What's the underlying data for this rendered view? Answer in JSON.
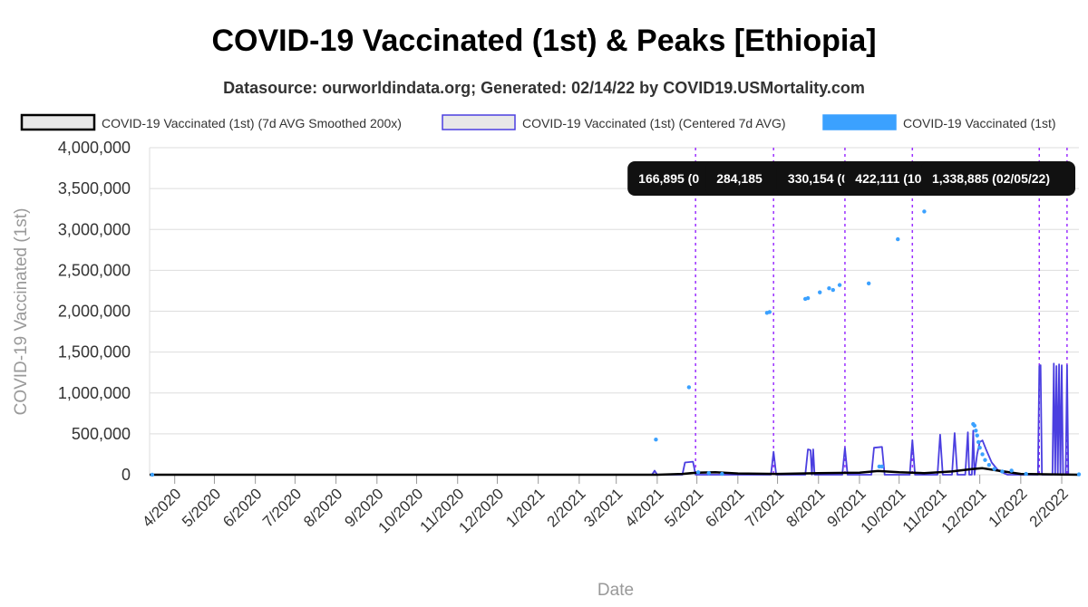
{
  "chart_data": {
    "type": "line",
    "title": "COVID-19 Vaccinated (1st) & Peaks [Ethiopia]",
    "subtitle": "Datasource: ourworldindata.org; Generated: 02/14/22 by COVID19.USMortality.com",
    "xlabel": "Date",
    "ylabel": "COVID-19 Vaccinated (1st)",
    "ylim": [
      0,
      4000000
    ],
    "yticks": [
      "0",
      "500,000",
      "1,000,000",
      "1,500,000",
      "2,000,000",
      "2,500,000",
      "3,000,000",
      "3,500,000",
      "4,000,000"
    ],
    "ytick_values": [
      0,
      500000,
      1000000,
      1500000,
      2000000,
      2500000,
      3000000,
      3500000,
      4000000
    ],
    "x_domain": [
      "2020-03-13",
      "2022-02-14"
    ],
    "xticks": [
      {
        "label": "4/2020",
        "date": "2020-04-01"
      },
      {
        "label": "5/2020",
        "date": "2020-05-01"
      },
      {
        "label": "6/2020",
        "date": "2020-06-01"
      },
      {
        "label": "7/2020",
        "date": "2020-07-01"
      },
      {
        "label": "8/2020",
        "date": "2020-08-01"
      },
      {
        "label": "9/2020",
        "date": "2020-09-01"
      },
      {
        "label": "10/2020",
        "date": "2020-10-01"
      },
      {
        "label": "11/2020",
        "date": "2020-11-01"
      },
      {
        "label": "12/2020",
        "date": "2020-12-01"
      },
      {
        "label": "1/2021",
        "date": "2021-01-01"
      },
      {
        "label": "2/2021",
        "date": "2021-02-01"
      },
      {
        "label": "3/2021",
        "date": "2021-03-01"
      },
      {
        "label": "4/2021",
        "date": "2021-04-01"
      },
      {
        "label": "5/2021",
        "date": "2021-05-01"
      },
      {
        "label": "6/2021",
        "date": "2021-06-01"
      },
      {
        "label": "7/2021",
        "date": "2021-07-01"
      },
      {
        "label": "8/2021",
        "date": "2021-08-01"
      },
      {
        "label": "9/2021",
        "date": "2021-09-01"
      },
      {
        "label": "10/2021",
        "date": "2021-10-01"
      },
      {
        "label": "11/2021",
        "date": "2021-11-01"
      },
      {
        "label": "12/2021",
        "date": "2021-12-01"
      },
      {
        "label": "1/2022",
        "date": "2022-01-01"
      },
      {
        "label": "2/2022",
        "date": "2022-02-01"
      }
    ],
    "legend": {
      "placement": "top",
      "items": [
        {
          "label": "COVID-19 Vaccinated (1st) (7d AVG Smoothed 200x)",
          "fill": "#e8e8e8",
          "stroke": "#000000"
        },
        {
          "label": "COVID-19 Vaccinated (1st) (Centered 7d AVG)",
          "fill": "#e8e8e8",
          "stroke": "#4b3fe0"
        },
        {
          "label": "COVID-19 Vaccinated (1st)",
          "fill": "#3ba1ff",
          "stroke": "#3ba1ff"
        }
      ]
    },
    "series": [
      {
        "name": "COVID-19 Vaccinated (1st)",
        "kind": "scatter",
        "color": "#3ba1ff",
        "points": [
          [
            "2020-03-15",
            0
          ],
          [
            "2021-03-31",
            430000
          ],
          [
            "2021-04-25",
            1070000
          ],
          [
            "2021-05-02",
            30000
          ],
          [
            "2021-05-10",
            20000
          ],
          [
            "2021-05-20",
            10000
          ],
          [
            "2021-06-23",
            1980000
          ],
          [
            "2021-06-25",
            1990000
          ],
          [
            "2021-07-22",
            2150000
          ],
          [
            "2021-07-24",
            2160000
          ],
          [
            "2021-08-02",
            2230000
          ],
          [
            "2021-08-09",
            2280000
          ],
          [
            "2021-08-12",
            2260000
          ],
          [
            "2021-08-17",
            2320000
          ],
          [
            "2021-09-08",
            2340000
          ],
          [
            "2021-09-16",
            100000
          ],
          [
            "2021-09-18",
            100000
          ],
          [
            "2021-09-30",
            2880000
          ],
          [
            "2021-10-20",
            3220000
          ],
          [
            "2021-11-26",
            620000
          ],
          [
            "2021-11-27",
            600000
          ],
          [
            "2021-11-28",
            540000
          ],
          [
            "2021-11-29",
            480000
          ],
          [
            "2021-11-30",
            400000
          ],
          [
            "2021-12-01",
            330000
          ],
          [
            "2021-12-03",
            250000
          ],
          [
            "2021-12-05",
            180000
          ],
          [
            "2021-12-08",
            120000
          ],
          [
            "2021-12-12",
            70000
          ],
          [
            "2021-12-18",
            40000
          ],
          [
            "2021-12-25",
            50000
          ],
          [
            "2022-01-05",
            10000
          ],
          [
            "2022-02-14",
            5000
          ]
        ]
      },
      {
        "name": "COVID-19 Vaccinated (1st) (Centered 7d AVG)",
        "kind": "line",
        "color": "#4b3fe0",
        "points": [
          [
            "2020-03-13",
            0
          ],
          [
            "2021-03-28",
            0
          ],
          [
            "2021-03-30",
            50000
          ],
          [
            "2021-04-01",
            0
          ],
          [
            "2021-04-20",
            0
          ],
          [
            "2021-04-22",
            150000
          ],
          [
            "2021-04-28",
            160000
          ],
          [
            "2021-04-30",
            0
          ],
          [
            "2021-06-26",
            0
          ],
          [
            "2021-06-28",
            280000
          ],
          [
            "2021-06-30",
            0
          ],
          [
            "2021-07-22",
            0
          ],
          [
            "2021-07-24",
            310000
          ],
          [
            "2021-07-26",
            300000
          ],
          [
            "2021-07-27",
            0
          ],
          [
            "2021-07-28",
            310000
          ],
          [
            "2021-07-29",
            0
          ],
          [
            "2021-08-19",
            0
          ],
          [
            "2021-08-21",
            330000
          ],
          [
            "2021-08-23",
            0
          ],
          [
            "2021-09-10",
            0
          ],
          [
            "2021-09-12",
            330000
          ],
          [
            "2021-09-18",
            340000
          ],
          [
            "2021-09-20",
            0
          ],
          [
            "2021-10-09",
            0
          ],
          [
            "2021-10-11",
            422000
          ],
          [
            "2021-10-13",
            0
          ],
          [
            "2021-10-30",
            0
          ],
          [
            "2021-11-01",
            490000
          ],
          [
            "2021-11-03",
            0
          ],
          [
            "2021-11-10",
            0
          ],
          [
            "2021-11-12",
            510000
          ],
          [
            "2021-11-14",
            0
          ],
          [
            "2021-11-20",
            0
          ],
          [
            "2021-11-22",
            520000
          ],
          [
            "2021-11-23",
            0
          ],
          [
            "2021-11-25",
            0
          ],
          [
            "2021-11-26",
            540000
          ],
          [
            "2021-11-27",
            0
          ],
          [
            "2021-11-29",
            250000
          ],
          [
            "2021-12-01",
            400000
          ],
          [
            "2021-12-03",
            420000
          ],
          [
            "2021-12-06",
            300000
          ],
          [
            "2021-12-10",
            150000
          ],
          [
            "2021-12-15",
            50000
          ],
          [
            "2021-12-22",
            0
          ],
          [
            "2022-01-14",
            0
          ],
          [
            "2022-01-15",
            1330000
          ],
          [
            "2022-01-16",
            1340000
          ],
          [
            "2022-01-17",
            0
          ],
          [
            "2022-01-25",
            0
          ],
          [
            "2022-01-26",
            1360000
          ],
          [
            "2022-01-27",
            0
          ],
          [
            "2022-01-28",
            1330000
          ],
          [
            "2022-01-29",
            0
          ],
          [
            "2022-01-30",
            1350000
          ],
          [
            "2022-01-31",
            0
          ],
          [
            "2022-02-01",
            1340000
          ],
          [
            "2022-02-02",
            0
          ],
          [
            "2022-02-04",
            0
          ],
          [
            "2022-02-05",
            1338885
          ],
          [
            "2022-02-06",
            0
          ],
          [
            "2022-02-14",
            0
          ]
        ]
      },
      {
        "name": "COVID-19 Vaccinated (1st) (7d AVG Smoothed 200x)",
        "kind": "line",
        "color": "#000000",
        "points": [
          [
            "2020-03-13",
            0
          ],
          [
            "2021-04-01",
            0
          ],
          [
            "2021-04-20",
            10000
          ],
          [
            "2021-05-01",
            25000
          ],
          [
            "2021-05-15",
            30000
          ],
          [
            "2021-06-01",
            15000
          ],
          [
            "2021-07-01",
            10000
          ],
          [
            "2021-08-01",
            20000
          ],
          [
            "2021-09-01",
            25000
          ],
          [
            "2021-09-15",
            45000
          ],
          [
            "2021-10-01",
            30000
          ],
          [
            "2021-10-20",
            20000
          ],
          [
            "2021-11-10",
            40000
          ],
          [
            "2021-11-25",
            70000
          ],
          [
            "2021-12-03",
            80000
          ],
          [
            "2021-12-15",
            50000
          ],
          [
            "2022-01-01",
            10000
          ],
          [
            "2022-02-14",
            0
          ]
        ]
      }
    ],
    "peaks": [
      {
        "date": "2021-04-30",
        "value": 166895,
        "label": "166,895 (0"
      },
      {
        "date": "2021-06-28",
        "value": 284185,
        "label": "284,185"
      },
      {
        "date": "2021-08-21",
        "value": 330154,
        "label": "330,154 (0"
      },
      {
        "date": "2021-10-11",
        "value": 422111,
        "label": "422,111 (10/"
      },
      {
        "date": "2022-01-15",
        "value": 1338885,
        "label": "1,338,885 (02/05/22)"
      },
      {
        "date": "2022-02-05",
        "value": 1338885,
        "label": ""
      }
    ],
    "grid": true
  }
}
